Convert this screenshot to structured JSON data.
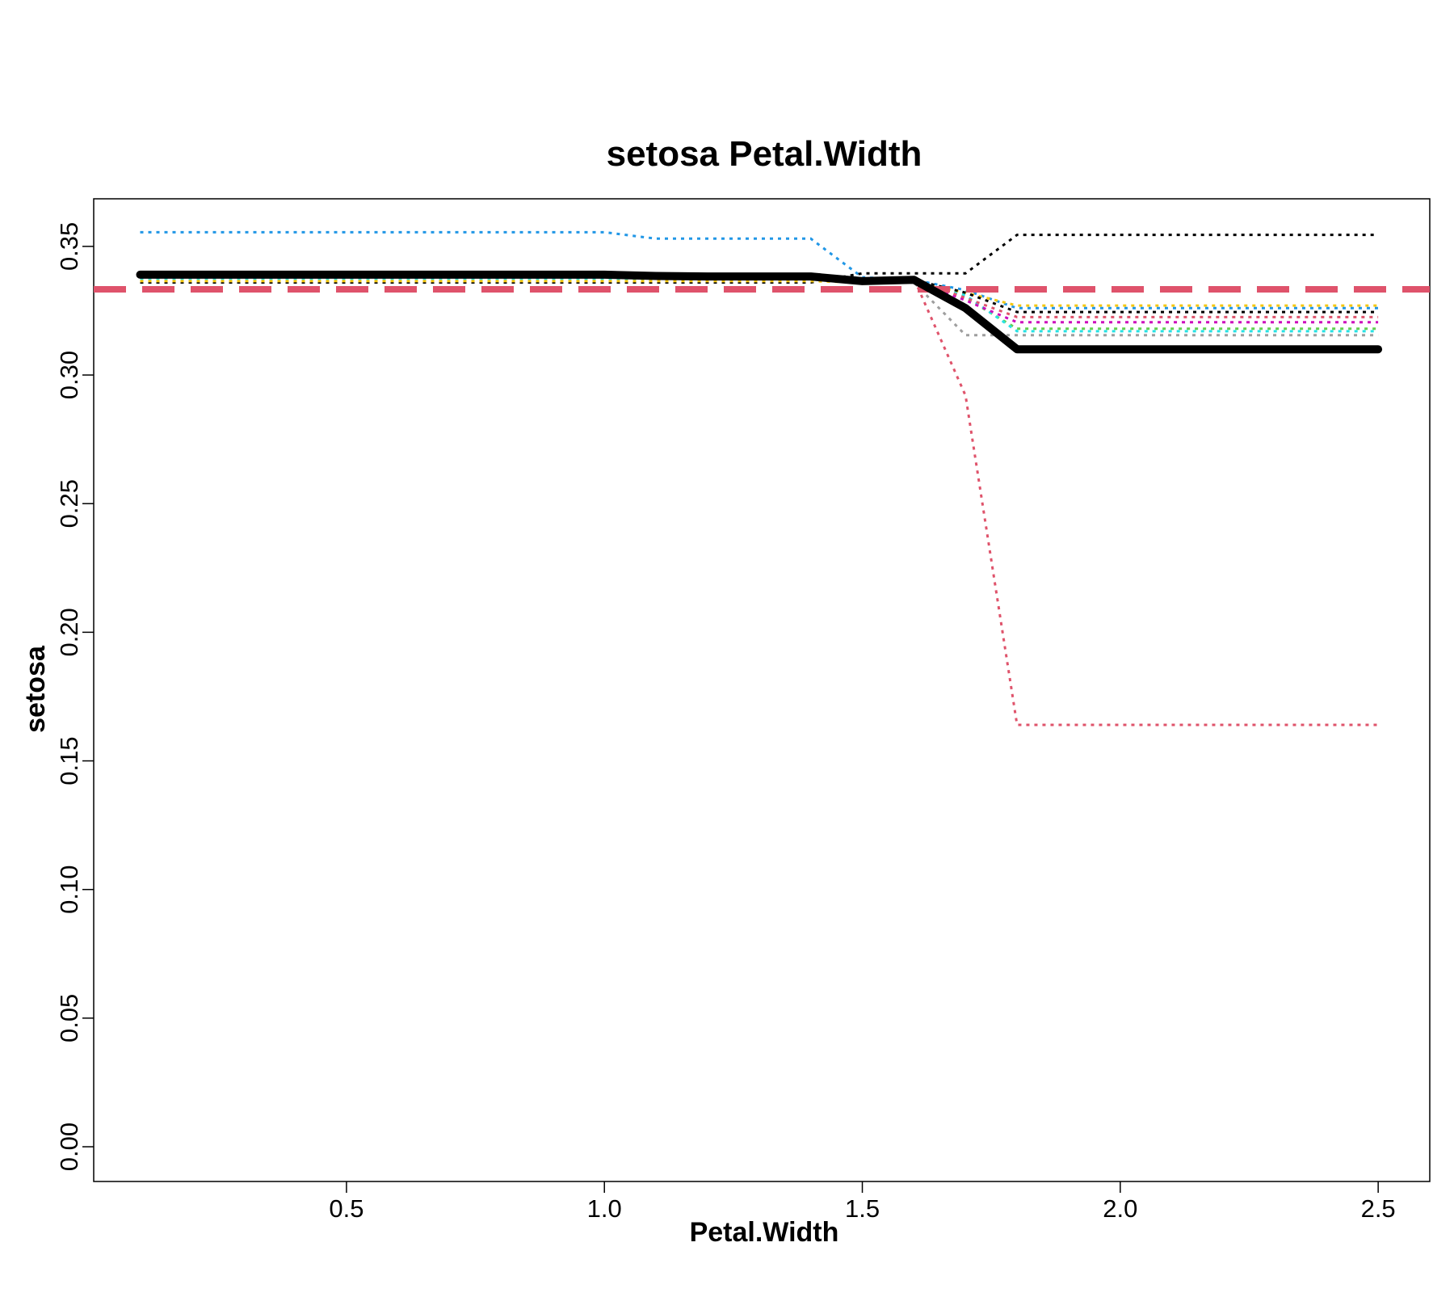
{
  "chart_data": {
    "type": "line",
    "title": "setosa  Petal.Width",
    "xlabel": "Petal.Width",
    "ylabel": "setosa",
    "xlim": [
      0.01,
      2.6
    ],
    "ylim": [
      -0.0135,
      0.3685
    ],
    "x_ticks": [
      {
        "value": 0.5,
        "label": "0.5"
      },
      {
        "value": 1.0,
        "label": "1.0"
      },
      {
        "value": 1.5,
        "label": "1.5"
      },
      {
        "value": 2.0,
        "label": "2.0"
      },
      {
        "value": 2.5,
        "label": "2.5"
      }
    ],
    "y_ticks": [
      {
        "value": 0.0,
        "label": "0.00"
      },
      {
        "value": 0.05,
        "label": "0.05"
      },
      {
        "value": 0.1,
        "label": "0.10"
      },
      {
        "value": 0.15,
        "label": "0.15"
      },
      {
        "value": 0.2,
        "label": "0.20"
      },
      {
        "value": 0.25,
        "label": "0.25"
      },
      {
        "value": 0.3,
        "label": "0.30"
      },
      {
        "value": 0.35,
        "label": "0.35"
      }
    ],
    "grid": false,
    "legend": "none",
    "reference_line": {
      "y": 0.3333,
      "color": "#DF536B",
      "style": "dashed"
    },
    "x": [
      0.1,
      0.2,
      0.3,
      0.4,
      0.5,
      0.6,
      0.7,
      0.8,
      0.9,
      1.0,
      1.1,
      1.2,
      1.3,
      1.4,
      1.5,
      1.6,
      1.7,
      1.8,
      1.9,
      2.0,
      2.1,
      2.2,
      2.3,
      2.4,
      2.5
    ],
    "mean_series": {
      "color": "#000000",
      "values": [
        0.339,
        0.339,
        0.339,
        0.339,
        0.339,
        0.339,
        0.339,
        0.339,
        0.339,
        0.339,
        0.3385,
        0.3383,
        0.3383,
        0.3383,
        0.3365,
        0.337,
        0.326,
        0.31,
        0.31,
        0.31,
        0.31,
        0.31,
        0.31,
        0.31,
        0.31
      ]
    },
    "series": [
      {
        "color": "#2297E6",
        "values": [
          0.3555,
          0.3555,
          0.3555,
          0.3555,
          0.3555,
          0.3555,
          0.3555,
          0.3555,
          0.3555,
          0.3555,
          0.353,
          0.353,
          0.353,
          0.353,
          0.338,
          0.337,
          0.333,
          0.326,
          0.326,
          0.326,
          0.326,
          0.326,
          0.326,
          0.326,
          0.326
        ]
      },
      {
        "color": "#000000",
        "values": [
          0.336,
          0.336,
          0.336,
          0.336,
          0.336,
          0.336,
          0.336,
          0.336,
          0.336,
          0.336,
          0.336,
          0.336,
          0.336,
          0.336,
          0.3395,
          0.3395,
          0.3395,
          0.3545,
          0.3545,
          0.3545,
          0.3545,
          0.3545,
          0.3545,
          0.3545,
          0.3545
        ]
      },
      {
        "color": "#DF536B",
        "values": [
          0.3375,
          0.3375,
          0.3375,
          0.3375,
          0.3375,
          0.3375,
          0.3375,
          0.3375,
          0.3375,
          0.3375,
          0.3375,
          0.3375,
          0.3375,
          0.3375,
          0.3375,
          0.3375,
          0.292,
          0.164,
          0.164,
          0.164,
          0.164,
          0.164,
          0.164,
          0.164,
          0.164
        ]
      },
      {
        "color": "#9E9E9E",
        "values": [
          0.337,
          0.337,
          0.337,
          0.337,
          0.337,
          0.337,
          0.337,
          0.337,
          0.337,
          0.337,
          0.337,
          0.337,
          0.337,
          0.337,
          0.336,
          0.336,
          0.3155,
          0.3155,
          0.3155,
          0.3155,
          0.3155,
          0.3155,
          0.3155,
          0.3155,
          0.3155
        ]
      },
      {
        "color": "#61D04F",
        "values": [
          0.3375,
          0.3375,
          0.3375,
          0.3375,
          0.3375,
          0.3375,
          0.3375,
          0.3375,
          0.3375,
          0.3375,
          0.3375,
          0.3375,
          0.3375,
          0.3375,
          0.337,
          0.337,
          0.33,
          0.318,
          0.318,
          0.318,
          0.318,
          0.318,
          0.318,
          0.318,
          0.318
        ]
      },
      {
        "color": "#28E2E5",
        "values": [
          0.3375,
          0.3375,
          0.3375,
          0.3375,
          0.3375,
          0.3375,
          0.3375,
          0.3375,
          0.3375,
          0.3375,
          0.3375,
          0.3375,
          0.3375,
          0.3375,
          0.337,
          0.337,
          0.331,
          0.317,
          0.317,
          0.317,
          0.317,
          0.317,
          0.317,
          0.317,
          0.317
        ]
      },
      {
        "color": "#CD0BBC",
        "values": [
          0.338,
          0.338,
          0.338,
          0.338,
          0.338,
          0.338,
          0.338,
          0.338,
          0.338,
          0.338,
          0.338,
          0.338,
          0.338,
          0.338,
          0.337,
          0.337,
          0.329,
          0.3205,
          0.3205,
          0.3205,
          0.3205,
          0.3205,
          0.3205,
          0.3205,
          0.3205
        ]
      },
      {
        "color": "#F5C710",
        "values": [
          0.3365,
          0.3365,
          0.3365,
          0.3365,
          0.3365,
          0.3365,
          0.3365,
          0.3365,
          0.3365,
          0.3365,
          0.3365,
          0.3365,
          0.3365,
          0.3365,
          0.336,
          0.336,
          0.332,
          0.327,
          0.327,
          0.327,
          0.327,
          0.327,
          0.327,
          0.327,
          0.327
        ]
      },
      {
        "color": "#DF536B",
        "values": [
          0.338,
          0.338,
          0.338,
          0.338,
          0.338,
          0.338,
          0.338,
          0.338,
          0.338,
          0.338,
          0.338,
          0.338,
          0.338,
          0.338,
          0.337,
          0.337,
          0.33,
          0.3225,
          0.3225,
          0.3225,
          0.3225,
          0.3225,
          0.3225,
          0.3225,
          0.3225
        ]
      },
      {
        "color": "#000000",
        "values": [
          0.3385,
          0.3385,
          0.3385,
          0.3385,
          0.3385,
          0.3385,
          0.3385,
          0.3385,
          0.3385,
          0.3385,
          0.3385,
          0.3385,
          0.3385,
          0.3385,
          0.337,
          0.337,
          0.332,
          0.3245,
          0.3245,
          0.3245,
          0.3245,
          0.3245,
          0.3245,
          0.3245,
          0.3245
        ]
      }
    ]
  }
}
